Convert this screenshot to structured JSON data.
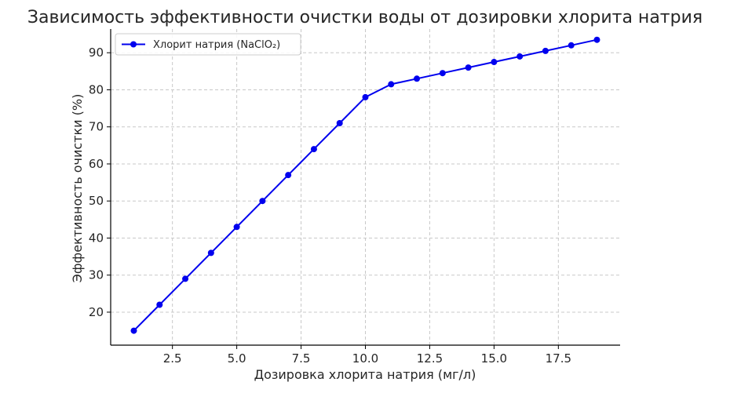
{
  "chart_data": {
    "type": "line",
    "title": "Зависимость эффективности очистки воды от дозировки хлорита натрия",
    "xlabel": "Дозировка хлорита натрия (мг/л)",
    "ylabel": "Эффективность очистки (%)",
    "xlim": [
      0.1,
      19.9
    ],
    "ylim": [
      11.1,
      96.4
    ],
    "xticks": [
      2.5,
      5.0,
      7.5,
      10.0,
      12.5,
      15.0,
      17.5
    ],
    "xtick_labels": [
      "2.5",
      "5.0",
      "7.5",
      "10.0",
      "12.5",
      "15.0",
      "17.5"
    ],
    "yticks": [
      20,
      30,
      40,
      50,
      60,
      70,
      80,
      90
    ],
    "ytick_labels": [
      "20",
      "30",
      "40",
      "50",
      "60",
      "70",
      "80",
      "90"
    ],
    "grid": true,
    "legend_position": "top-left",
    "series": [
      {
        "name": "Хлорит натрия (NaClO₂)",
        "color": "#0000ee",
        "marker": "circle",
        "x": [
          1,
          2,
          3,
          4,
          5,
          6,
          7,
          8,
          9,
          10,
          11,
          12,
          13,
          14,
          15,
          16,
          17,
          18,
          19
        ],
        "y": [
          15,
          22,
          29,
          36,
          43,
          50,
          57,
          64,
          71,
          78,
          81.5,
          83,
          84.5,
          86,
          87.5,
          89,
          90.5,
          92,
          93.5
        ]
      }
    ]
  }
}
